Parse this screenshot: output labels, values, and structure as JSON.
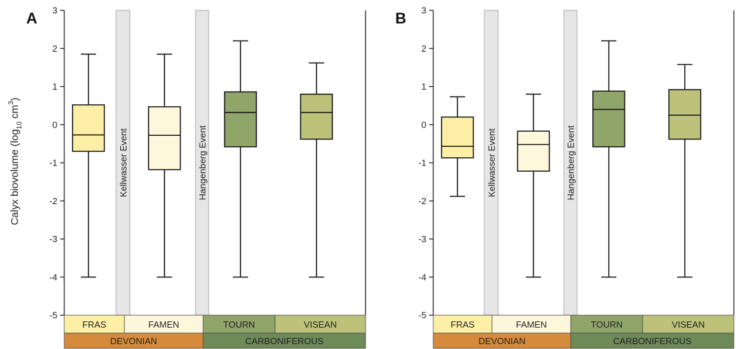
{
  "ylabel_main": "Calyx biovolume (log",
  "ylabel_sub": "10",
  "ylabel_unit": " cm",
  "ylabel_sup": "3",
  "ylabel_end": ")",
  "colors": {
    "fras": "#fdf0a6",
    "famen": "#fdf8dc",
    "tourn": "#8fa56a",
    "visean": "#bcc27a",
    "devonian": "#d68b3c",
    "carboniferous": "#6e8a57",
    "event": "#e6e6e6"
  },
  "chart_data": [
    {
      "type": "box",
      "panel": "A",
      "ylim": [
        -5,
        3
      ],
      "yticks": [
        3,
        2,
        1,
        0,
        -1,
        -2,
        -3,
        -4,
        -5
      ],
      "events": [
        "Kellwasser Event",
        "Hangenberg Event"
      ],
      "boxes": [
        {
          "stage": "FRAS",
          "min": -4,
          "q1": -0.7,
          "median": -0.27,
          "q3": 0.52,
          "max": 1.85
        },
        {
          "stage": "FAMEN",
          "min": -4,
          "q1": -1.18,
          "median": -0.28,
          "q3": 0.47,
          "max": 1.85
        },
        {
          "stage": "TOURN",
          "min": -4,
          "q1": -0.58,
          "median": 0.32,
          "q3": 0.86,
          "max": 2.2
        },
        {
          "stage": "VISEAN",
          "min": -4,
          "q1": -0.38,
          "median": 0.32,
          "q3": 0.8,
          "max": 1.62
        }
      ],
      "stages": [
        "FRAS",
        "FAMEN",
        "TOURN",
        "VISEAN"
      ],
      "periods": [
        "DEVONIAN",
        "CARBONIFEROUS"
      ]
    },
    {
      "type": "box",
      "panel": "B",
      "ylim": [
        -5,
        3
      ],
      "yticks": [
        3,
        2,
        1,
        0,
        -1,
        -2,
        -3,
        -4,
        -5
      ],
      "events": [
        "Kellwasser Event",
        "Hangenberg Event"
      ],
      "boxes": [
        {
          "stage": "FRAS",
          "min": -1.88,
          "q1": -0.87,
          "median": -0.57,
          "q3": 0.2,
          "max": 0.73
        },
        {
          "stage": "FAMEN",
          "min": -4,
          "q1": -1.22,
          "median": -0.52,
          "q3": -0.17,
          "max": 0.8
        },
        {
          "stage": "TOURN",
          "min": -4,
          "q1": -0.58,
          "median": 0.4,
          "q3": 0.88,
          "max": 2.2
        },
        {
          "stage": "VISEAN",
          "min": -4,
          "q1": -0.38,
          "median": 0.25,
          "q3": 0.92,
          "max": 1.58
        }
      ],
      "stages": [
        "FRAS",
        "FAMEN",
        "TOURN",
        "VISEAN"
      ],
      "periods": [
        "DEVONIAN",
        "CARBONIFEROUS"
      ]
    }
  ]
}
